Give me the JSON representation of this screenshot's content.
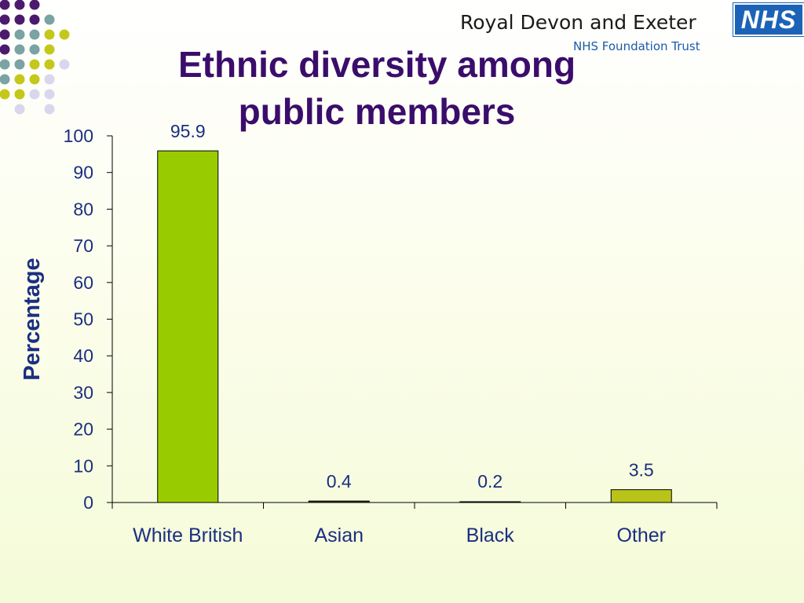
{
  "header": {
    "org_name": "Royal Devon and Exeter",
    "trust_name": "NHS Foundation Trust",
    "nhs_logo": "NHS"
  },
  "slide": {
    "title_line1": "Ethnic diversity among",
    "title_line2": "public members"
  },
  "colors": {
    "title": "#3b0d6b",
    "axis_text": "#1a2f80",
    "bar_white_british": "#99cc00",
    "bar_other": "#b8c41a",
    "bar_minor": "#3b3b00",
    "dot_purple": "#4b1a6e",
    "dot_teal": "#7aa3a3",
    "dot_yellow": "#c4c81a",
    "dot_lavender": "#d9d6ee"
  },
  "chart_data": {
    "type": "bar",
    "categories": [
      "White British",
      "Asian",
      "Black",
      "Other"
    ],
    "values": [
      95.9,
      0.4,
      0.2,
      3.5
    ],
    "data_labels": [
      "95.9",
      "0.4",
      "0.2",
      "3.5"
    ],
    "ylabel": "Percentage",
    "xlabel": "",
    "ylim": [
      0,
      100
    ],
    "yticks": [
      0,
      10,
      20,
      30,
      40,
      50,
      60,
      70,
      80,
      90,
      100
    ],
    "grid": false,
    "legend": "none"
  }
}
